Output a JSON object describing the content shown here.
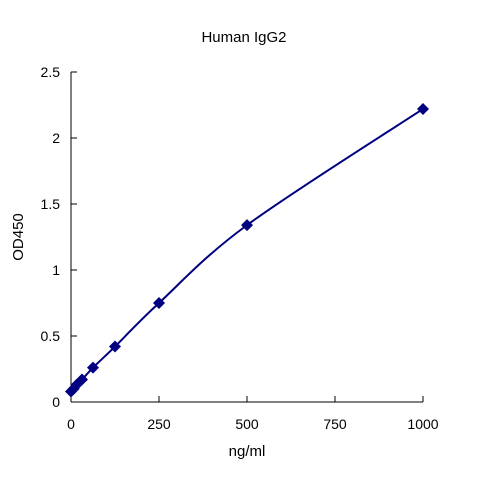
{
  "chart_data": {
    "type": "scatter",
    "title": "Human IgG2",
    "xlabel": "ng/ml",
    "ylabel": "OD450",
    "xlim": [
      0,
      1000
    ],
    "ylim": [
      0,
      2.5
    ],
    "xticks": [
      0,
      250,
      500,
      750,
      1000
    ],
    "xtick_labels": [
      "0",
      "250",
      "500",
      "750",
      "1000"
    ],
    "yticks": [
      0,
      0.5,
      1,
      1.5,
      2,
      2.5
    ],
    "ytick_labels": [
      "0",
      "0.5",
      "1",
      "1.5",
      "2",
      "2.5"
    ],
    "grid": false,
    "legend": "none",
    "series": [
      {
        "marker": "diamond",
        "color": "#000080",
        "fit_line": "smooth",
        "x": [
          0,
          7.8,
          15.6,
          31.25,
          62.5,
          125,
          250,
          500,
          1000
        ],
        "y": [
          0.08,
          0.1,
          0.13,
          0.17,
          0.26,
          0.42,
          0.75,
          1.34,
          2.22
        ]
      }
    ]
  }
}
